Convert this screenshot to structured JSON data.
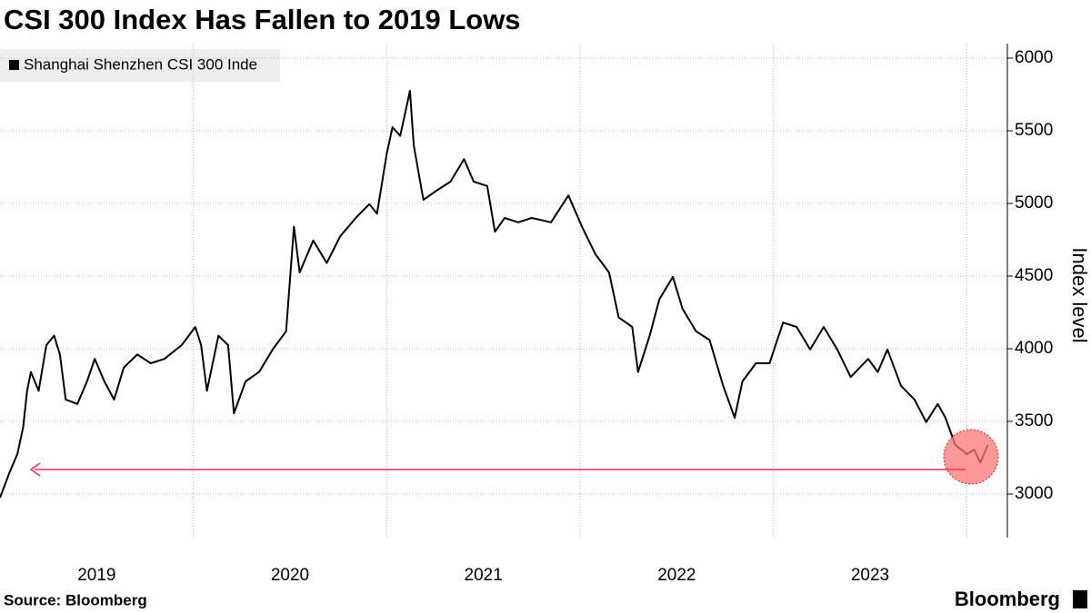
{
  "chart_data": {
    "type": "line",
    "title": "CSI 300 Index Has Fallen to 2019 Lows",
    "y_axis_label": "Index level",
    "source": "Source: Bloomberg",
    "brand": "Bloomberg",
    "x": [
      2019.0,
      2019.05,
      2019.09,
      2019.12,
      2019.14,
      2019.16,
      2019.2,
      2019.24,
      2019.28,
      2019.31,
      2019.34,
      2019.4,
      2019.45,
      2019.49,
      2019.54,
      2019.59,
      2019.64,
      2019.71,
      2019.78,
      2019.85,
      2019.94,
      2020.01,
      2020.04,
      2020.07,
      2020.13,
      2020.18,
      2020.21,
      2020.27,
      2020.34,
      2020.41,
      2020.48,
      2020.52,
      2020.55,
      2020.62,
      2020.69,
      2020.76,
      2020.84,
      2020.91,
      2020.95,
      2021.0,
      2021.03,
      2021.07,
      2021.12,
      2021.14,
      2021.19,
      2021.26,
      2021.33,
      2021.4,
      2021.45,
      2021.52,
      2021.56,
      2021.61,
      2021.68,
      2021.75,
      2021.85,
      2021.94,
      2022.01,
      2022.08,
      2022.15,
      2022.2,
      2022.27,
      2022.3,
      2022.36,
      2022.41,
      2022.48,
      2022.53,
      2022.6,
      2022.67,
      2022.74,
      2022.8,
      2022.84,
      2022.91,
      2022.98,
      2023.05,
      2023.12,
      2023.19,
      2023.26,
      2023.33,
      2023.4,
      2023.49,
      2023.54,
      2023.59,
      2023.66,
      2023.73,
      2023.79,
      2023.85,
      2023.89,
      2023.94,
      2024.0,
      2024.04,
      2024.07,
      2024.11
    ],
    "series": [
      {
        "name": "Shanghai Shenzhen CSI 300 Inde",
        "color": "#000000",
        "values": [
          2975,
          3150,
          3275,
          3460,
          3710,
          3840,
          3710,
          4025,
          4090,
          3960,
          3650,
          3620,
          3775,
          3930,
          3775,
          3650,
          3870,
          3960,
          3900,
          3930,
          4025,
          4150,
          4025,
          3710,
          4090,
          4025,
          3555,
          3775,
          3840,
          3995,
          4120,
          4840,
          4525,
          4745,
          4590,
          4775,
          4900,
          4995,
          4930,
          5340,
          5525,
          5465,
          5775,
          5400,
          5025,
          5090,
          5150,
          5305,
          5150,
          5120,
          4805,
          4900,
          4870,
          4900,
          4870,
          5055,
          4840,
          4650,
          4525,
          4215,
          4150,
          3840,
          4090,
          4340,
          4495,
          4275,
          4120,
          4060,
          3745,
          3525,
          3775,
          3900,
          3900,
          4180,
          4150,
          3995,
          4150,
          3995,
          3805,
          3930,
          3840,
          3995,
          3745,
          3650,
          3495,
          3620,
          3525,
          3340,
          3275,
          3305,
          3215,
          3340
        ]
      }
    ],
    "xlim": [
      2019,
      2024.21
    ],
    "xticks": [
      {
        "value": 2019.5,
        "label": "2019"
      },
      {
        "value": 2020.5,
        "label": "2020"
      },
      {
        "value": 2021.5,
        "label": "2021"
      },
      {
        "value": 2022.5,
        "label": "2022"
      },
      {
        "value": 2023.5,
        "label": "2023"
      }
    ],
    "xgrid": [
      2020,
      2021,
      2022,
      2023,
      2024
    ],
    "ylim": [
      2700,
      6100
    ],
    "yticks": [
      3000,
      3500,
      4000,
      4500,
      5000,
      5500,
      6000
    ],
    "grid": true
  }
}
